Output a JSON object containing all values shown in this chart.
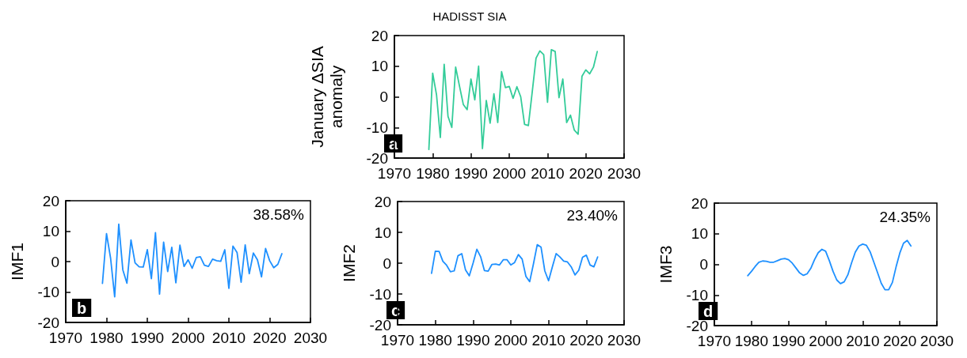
{
  "chart_data": [
    {
      "type": "line",
      "title": "HADISST SIA",
      "ylabel": "January ΔSIA\nanomaly",
      "color": "#33cc99",
      "grid": false,
      "annotations": [
        "a"
      ],
      "x": [
        1979,
        1980,
        1981,
        1982,
        1983,
        1984,
        1985,
        1986,
        1987,
        1988,
        1989,
        1990,
        1991,
        1992,
        1993,
        1994,
        1995,
        1996,
        1997,
        1998,
        1999,
        2000,
        2001,
        2002,
        2003,
        2004,
        2005,
        2006,
        2007,
        2008,
        2009,
        2010,
        2011,
        2012,
        2013,
        2014,
        2015,
        2016,
        2017,
        2018,
        2019,
        2020,
        2021,
        2022,
        2023
      ],
      "values": [
        -17.2,
        7.7,
        0.7,
        -13.3,
        10.6,
        -6.4,
        -10,
        9.7,
        3.5,
        -2.5,
        -4.2,
        5.8,
        -1,
        10,
        -16.9,
        -1.2,
        -8.6,
        1,
        -8.4,
        8.2,
        3,
        3.4,
        -0.5,
        3.3,
        0,
        -9,
        -9.4,
        1.5,
        12.6,
        15,
        13.8,
        -1.8,
        15.4,
        14.8,
        -0.3,
        5.8,
        -8.4,
        -6,
        -10.9,
        -12.2,
        6.7,
        8.8,
        7.5,
        9.7,
        14.8
      ],
      "xlim": [
        1970,
        2030
      ],
      "xticks": [
        1970,
        1980,
        1990,
        2000,
        2010,
        2020,
        2030
      ],
      "ylim": [
        -20,
        20
      ],
      "yticks": [
        -20,
        -10,
        0,
        10,
        20
      ]
    },
    {
      "type": "line",
      "ylabel": "IMF1",
      "color": "#1e90ff",
      "grid": false,
      "annotations": [
        "38.58%",
        "b"
      ],
      "x": [
        1979,
        1980,
        1981,
        1982,
        1983,
        1984,
        1985,
        1986,
        1987,
        1988,
        1989,
        1990,
        1991,
        1992,
        1993,
        1994,
        1995,
        1996,
        1997,
        1998,
        1999,
        2000,
        2001,
        2002,
        2003,
        2004,
        2005,
        2006,
        2007,
        2008,
        2009,
        2010,
        2011,
        2012,
        2013,
        2014,
        2015,
        2016,
        2017,
        2018,
        2019,
        2020,
        2021,
        2022,
        2023
      ],
      "values": [
        -7.2,
        9.2,
        1.1,
        -11.6,
        12.3,
        -2.7,
        -7.1,
        7.1,
        -0.4,
        -1.7,
        -1.8,
        3.9,
        -5.6,
        9.5,
        -10.7,
        6.4,
        -3.3,
        4.7,
        -7,
        5.4,
        -1.6,
        0.6,
        -2.2,
        1.3,
        1.6,
        -1.2,
        -1.6,
        0.8,
        0.3,
        0.1,
        3.9,
        -8.8,
        5.1,
        3,
        -6.8,
        5.5,
        -4,
        2.8,
        0.6,
        -5,
        4.3,
        0.3,
        -2,
        -0.9,
        2.6
      ],
      "xlim": [
        1970,
        2030
      ],
      "xticks": [
        1970,
        1980,
        1990,
        2000,
        2010,
        2020,
        2030
      ],
      "ylim": [
        -20,
        20
      ],
      "yticks": [
        -20,
        -10,
        0,
        10,
        20
      ]
    },
    {
      "type": "line",
      "ylabel": "IMF2",
      "color": "#1e90ff",
      "grid": false,
      "annotations": [
        "23.40%",
        "c"
      ],
      "x": [
        1979,
        1980,
        1981,
        1982,
        1983,
        1984,
        1985,
        1986,
        1987,
        1988,
        1989,
        1990,
        1991,
        1992,
        1993,
        1994,
        1995,
        1996,
        1997,
        1998,
        1999,
        2000,
        2001,
        2002,
        2003,
        2004,
        2005,
        2006,
        2007,
        2008,
        2009,
        2010,
        2011,
        2012,
        2013,
        2014,
        2015,
        2016,
        2017,
        2018,
        2019,
        2020,
        2021,
        2022,
        2023
      ],
      "values": [
        -3.3,
        3.9,
        3.8,
        0.6,
        -0.7,
        -2.8,
        -2.5,
        2.4,
        3.1,
        -2.2,
        -4.1,
        0,
        4.5,
        2.1,
        -2.4,
        -2.6,
        -0.4,
        -0.3,
        -0.6,
        1.1,
        1.1,
        -0.6,
        0.2,
        2.8,
        1.3,
        -4.3,
        -6,
        -0.2,
        6,
        5.2,
        -2.5,
        -5.7,
        -1.2,
        3.1,
        2,
        0.7,
        0.4,
        -1.2,
        -3.8,
        -2.3,
        1.9,
        2.6,
        -0.6,
        -1.2,
        2
      ],
      "xlim": [
        1970,
        2030
      ],
      "xticks": [
        1970,
        1980,
        1990,
        2000,
        2010,
        2020,
        2030
      ],
      "ylim": [
        -20,
        20
      ],
      "yticks": [
        -20,
        -10,
        0,
        10,
        20
      ]
    },
    {
      "type": "line",
      "ylabel": "IMF3",
      "color": "#1e90ff",
      "grid": false,
      "annotations": [
        "24.35%",
        "d"
      ],
      "x": [
        1979,
        1980,
        1981,
        1982,
        1983,
        1984,
        1985,
        1986,
        1987,
        1988,
        1989,
        1990,
        1991,
        1992,
        1993,
        1994,
        1995,
        1996,
        1997,
        1998,
        1999,
        2000,
        2001,
        2002,
        2003,
        2004,
        2005,
        2006,
        2007,
        2008,
        2009,
        2010,
        2011,
        2012,
        2013,
        2014,
        2015,
        2016,
        2017,
        2018,
        2019,
        2020,
        2021,
        2022,
        2023
      ],
      "values": [
        -3.7,
        -2.3,
        -0.7,
        0.7,
        1.1,
        1,
        0.7,
        0.7,
        1.2,
        1.7,
        1.9,
        1.5,
        0.4,
        -1.2,
        -2.8,
        -3.6,
        -3.1,
        -1.3,
        1.5,
        3.8,
        4.9,
        4.3,
        1.2,
        -2.3,
        -5.1,
        -6.3,
        -5.7,
        -3.4,
        0.5,
        4,
        6,
        6.6,
        6.2,
        4.1,
        0.7,
        -2.7,
        -6.2,
        -8.3,
        -8.3,
        -5.9,
        -0.8,
        3.7,
        6.9,
        7.8,
        6
      ],
      "xlim": [
        1970,
        2030
      ],
      "xticks": [
        1970,
        1980,
        1990,
        2000,
        2010,
        2020,
        2030
      ],
      "ylim": [
        -20,
        20
      ],
      "yticks": [
        -20,
        -10,
        0,
        10,
        20
      ]
    }
  ]
}
